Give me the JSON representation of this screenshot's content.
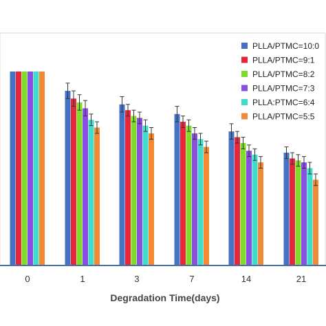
{
  "chart_data": {
    "type": "bar",
    "title": "",
    "xlabel": "Degradation Time(days)",
    "ylabel": "",
    "categories": [
      "0",
      "1",
      "3",
      "7",
      "14",
      "21"
    ],
    "ylim": [
      0,
      100
    ],
    "grid": false,
    "legend_position": "top-right",
    "series": [
      {
        "name": "PLLA/PTMC=10:0",
        "color": "#4472C4",
        "values": [
          100,
          90,
          83,
          78,
          69,
          58
        ],
        "errors": [
          0,
          4,
          4,
          4,
          4,
          3
        ]
      },
      {
        "name": "PLLA/PTMC=9:1",
        "color": "#E8263B",
        "values": [
          100,
          86,
          80,
          74,
          66,
          55
        ],
        "errors": [
          0,
          4,
          3,
          3,
          3,
          3
        ]
      },
      {
        "name": "PLLA/PTMC=8:2",
        "color": "#7FDC2A",
        "values": [
          100,
          84,
          77,
          72,
          63,
          54
        ],
        "errors": [
          0,
          4,
          3,
          3,
          3,
          3
        ]
      },
      {
        "name": "PLLA/PTMC=7:3",
        "color": "#8A4FE0",
        "values": [
          100,
          81,
          76,
          68,
          59,
          53
        ],
        "errors": [
          0,
          4,
          3,
          3,
          3,
          3
        ]
      },
      {
        "name": "PLLA:PTMC=6:4",
        "color": "#3FDCCB",
        "values": [
          100,
          75,
          72,
          65,
          57,
          50
        ],
        "errors": [
          0,
          3,
          3,
          3,
          3,
          3
        ]
      },
      {
        "name": "PLLA/PTMC=5:5",
        "color": "#F28A35",
        "values": [
          100,
          71,
          68,
          61,
          53,
          44
        ],
        "errors": [
          0,
          3,
          3,
          3,
          3,
          3
        ]
      }
    ]
  }
}
